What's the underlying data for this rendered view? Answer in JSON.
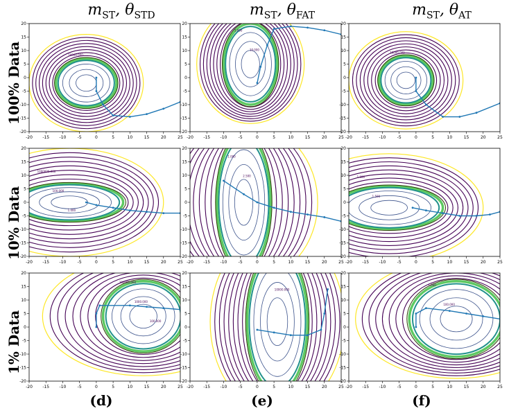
{
  "columns": [
    {
      "title_main": "m",
      "title_m_sub": "ST",
      "title_theta_sub": "STD",
      "caption": "(d)"
    },
    {
      "title_main": "m",
      "title_m_sub": "ST",
      "title_theta_sub": "FAT",
      "caption": "(e)"
    },
    {
      "title_main": "m",
      "title_m_sub": "ST",
      "title_theta_sub": "AT",
      "caption": "(f)"
    }
  ],
  "rows": [
    {
      "label": "100% Data"
    },
    {
      "label": "10% Data"
    },
    {
      "label": "1% Data"
    }
  ],
  "chart_data": {
    "type": "contour",
    "xlim": [
      -20,
      25
    ],
    "ylim": [
      -20,
      20
    ],
    "x_ticks": [
      -20,
      -15,
      -10,
      -5,
      0,
      5,
      10,
      15,
      20,
      25
    ],
    "y_ticks": [
      -20,
      -15,
      -10,
      -5,
      0,
      5,
      10,
      15,
      20
    ],
    "colors": {
      "outer": "#fde725",
      "mid": "#440154",
      "inner_a": "#21918c",
      "inner_b": "#5ec962",
      "trajectory": "#1f77b4"
    },
    "panels": [
      {
        "row": 0,
        "col": 0,
        "center": [
          -3,
          -2
        ],
        "rx": 9,
        "ry": 9,
        "outer_rx": 17,
        "outer_ry": 18,
        "labels": [
          "10000.000"
        ],
        "trajectory": [
          [
            0,
            0
          ],
          [
            0,
            -5
          ],
          [
            2,
            -10
          ],
          [
            5,
            -14
          ],
          [
            10,
            -14.5
          ],
          [
            15,
            -13.5
          ],
          [
            20,
            -11.5
          ],
          [
            25,
            -9
          ]
        ]
      },
      {
        "row": 0,
        "col": 1,
        "center": [
          -2,
          5
        ],
        "rx": 8,
        "ry": 15,
        "outer_rx": 16,
        "outer_ry": 22,
        "labels": [
          "1.000",
          "10.000"
        ],
        "trajectory": [
          [
            0,
            -2
          ],
          [
            1,
            4
          ],
          [
            3,
            12
          ],
          [
            5,
            18
          ],
          [
            10,
            19
          ],
          [
            15,
            18.5
          ],
          [
            20,
            17.5
          ],
          [
            25,
            16
          ]
        ]
      },
      {
        "row": 0,
        "col": 2,
        "center": [
          -3,
          -1
        ],
        "rx": 8,
        "ry": 9,
        "outer_rx": 17,
        "outer_ry": 18,
        "labels": [
          "10000.000"
        ],
        "trajectory": [
          [
            0,
            0
          ],
          [
            0,
            -5
          ],
          [
            3,
            -10
          ],
          [
            8,
            -14.5
          ],
          [
            13,
            -14.5
          ],
          [
            18,
            -13
          ],
          [
            25,
            -9.5
          ]
        ]
      },
      {
        "row": 1,
        "col": 0,
        "center": [
          -8,
          0
        ],
        "rx": 16,
        "ry": 7,
        "outer_rx": 28,
        "outer_ry": 20,
        "labels": [
          "1000000.000",
          "100.000",
          "1.000"
        ],
        "trajectory": [
          [
            -3,
            0
          ],
          [
            0,
            -1
          ],
          [
            5,
            -2
          ],
          [
            10,
            -3
          ],
          [
            15,
            -3.5
          ],
          [
            20,
            -4
          ],
          [
            25,
            -4
          ]
        ]
      },
      {
        "row": 1,
        "col": 1,
        "center": [
          -4,
          0
        ],
        "rx": 8,
        "ry": 25,
        "outer_rx": 22,
        "outer_ry": 30,
        "labels": [
          "1.000",
          "2.500"
        ],
        "trajectory": [
          [
            -10,
            8
          ],
          [
            -4,
            3
          ],
          [
            0,
            0
          ],
          [
            5,
            -2
          ],
          [
            10,
            -3.5
          ],
          [
            15,
            -4.5
          ],
          [
            20,
            -5.5
          ],
          [
            25,
            -7
          ]
        ]
      },
      {
        "row": 1,
        "col": 2,
        "center": [
          -8,
          -2
        ],
        "rx": 16,
        "ry": 8,
        "outer_rx": 28,
        "outer_ry": 20,
        "labels": [
          "1.000",
          "1.500"
        ],
        "trajectory": [
          [
            -1,
            -2
          ],
          [
            3,
            -3
          ],
          [
            8,
            -4
          ],
          [
            13,
            -5
          ],
          [
            18,
            -5
          ],
          [
            22,
            -4.5
          ],
          [
            25,
            -3.5
          ]
        ]
      },
      {
        "row": 2,
        "col": 0,
        "center": [
          14,
          4
        ],
        "rx": 12,
        "ry": 13,
        "outer_rx": 30,
        "outer_ry": 22,
        "labels": [
          "100000.000",
          "1000.000",
          "100.000"
        ],
        "trajectory": [
          [
            0,
            0
          ],
          [
            0,
            5
          ],
          [
            1,
            8
          ],
          [
            10,
            8
          ],
          [
            15,
            7.5
          ],
          [
            20,
            7
          ],
          [
            25,
            6.5
          ]
        ]
      },
      {
        "row": 2,
        "col": 1,
        "center": [
          6,
          2
        ],
        "rx": 9,
        "ry": 26,
        "outer_rx": 20,
        "outer_ry": 34,
        "labels": [
          "2.500",
          "10000.000"
        ],
        "trajectory": [
          [
            0,
            -1
          ],
          [
            5,
            -2
          ],
          [
            10,
            -3
          ],
          [
            15,
            -3
          ],
          [
            19,
            -1
          ],
          [
            20,
            5
          ],
          [
            21,
            14
          ]
        ]
      },
      {
        "row": 2,
        "col": 2,
        "center": [
          12,
          3
        ],
        "rx": 14,
        "ry": 14,
        "outer_rx": 30,
        "outer_ry": 22,
        "labels": [
          "1.000",
          "100.000"
        ],
        "trajectory": [
          [
            0,
            0
          ],
          [
            0,
            5
          ],
          [
            3,
            7
          ],
          [
            10,
            6
          ],
          [
            15,
            5
          ],
          [
            20,
            4
          ],
          [
            25,
            3
          ]
        ]
      }
    ]
  }
}
